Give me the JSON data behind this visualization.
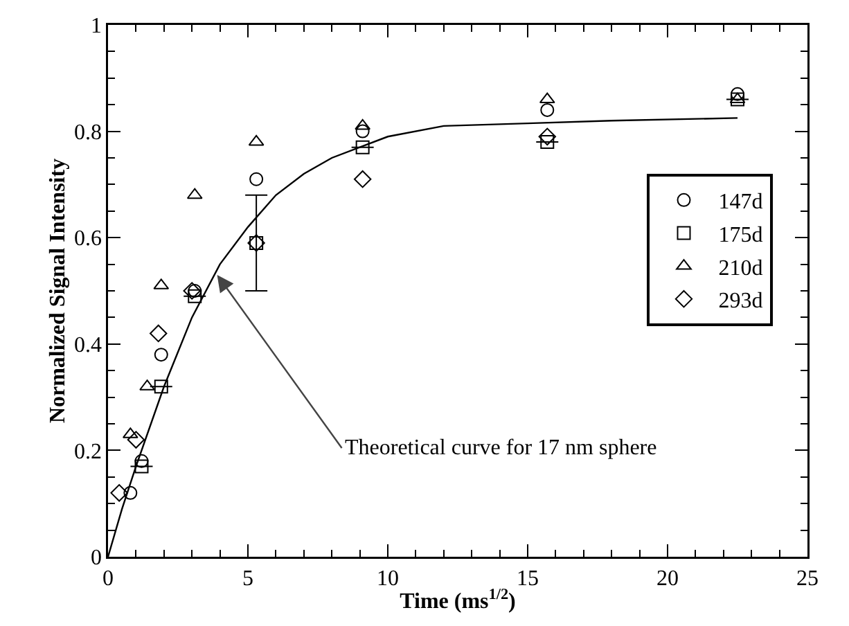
{
  "chart_data": {
    "type": "scatter",
    "xlabel": "Time (ms$^{1/2}$)",
    "ylabel": "Normalized Signal Intensity",
    "xlim": [
      0,
      25
    ],
    "xticks": [
      0,
      5,
      10,
      15,
      20,
      25
    ],
    "ylim": [
      0,
      1
    ],
    "yticks": [
      0,
      0.2,
      0.4,
      0.6,
      0.8,
      1
    ],
    "grid": false,
    "legend": "top right",
    "annotations": [
      {
        "text": "Theoretical curve for 17 nm sphere",
        "x": 3.9,
        "y": 0.53
      }
    ],
    "series": [
      {
        "name": "147d",
        "color": "#000000",
        "marker": "circle",
        "x": [
          0.8,
          1.2,
          1.9,
          3.1,
          5.3,
          9.1,
          15.7,
          22.5
        ],
        "values": [
          0.12,
          0.18,
          0.38,
          0.5,
          0.71,
          0.8,
          0.84,
          0.87
        ]
      },
      {
        "name": "175d",
        "color": "#000000",
        "marker": "square",
        "x": [
          1.2,
          1.9,
          3.1,
          5.3,
          9.1,
          15.7,
          22.5
        ],
        "values": [
          0.17,
          0.32,
          0.49,
          0.59,
          0.77,
          0.78,
          0.86
        ],
        "errors": [
          null,
          null,
          null,
          0.09,
          null,
          null,
          null
        ]
      },
      {
        "name": "210d",
        "color": "#000000",
        "marker": "triangle",
        "x": [
          0.8,
          1.4,
          1.9,
          3.1,
          5.3,
          9.1,
          15.7,
          22.5
        ],
        "values": [
          0.23,
          0.32,
          0.51,
          0.68,
          0.78,
          0.81,
          0.86,
          0.86
        ]
      },
      {
        "name": "293d",
        "color": "#000000",
        "marker": "diamond",
        "x": [
          0.4,
          1.0,
          1.8,
          3.0,
          5.3,
          9.1,
          15.7
        ],
        "values": [
          0.12,
          0.22,
          0.42,
          0.5,
          0.59,
          0.71,
          0.79
        ]
      },
      {
        "type": "line",
        "color": "#000000",
        "marker": "none",
        "line_style": "solid",
        "x": [
          0,
          0.5,
          1,
          2,
          3,
          4,
          5,
          6,
          7,
          8,
          10,
          12,
          15,
          18,
          22.5
        ],
        "values": [
          0,
          0.09,
          0.17,
          0.32,
          0.45,
          0.55,
          0.62,
          0.68,
          0.72,
          0.75,
          0.79,
          0.81,
          0.815,
          0.82,
          0.825
        ]
      }
    ]
  }
}
